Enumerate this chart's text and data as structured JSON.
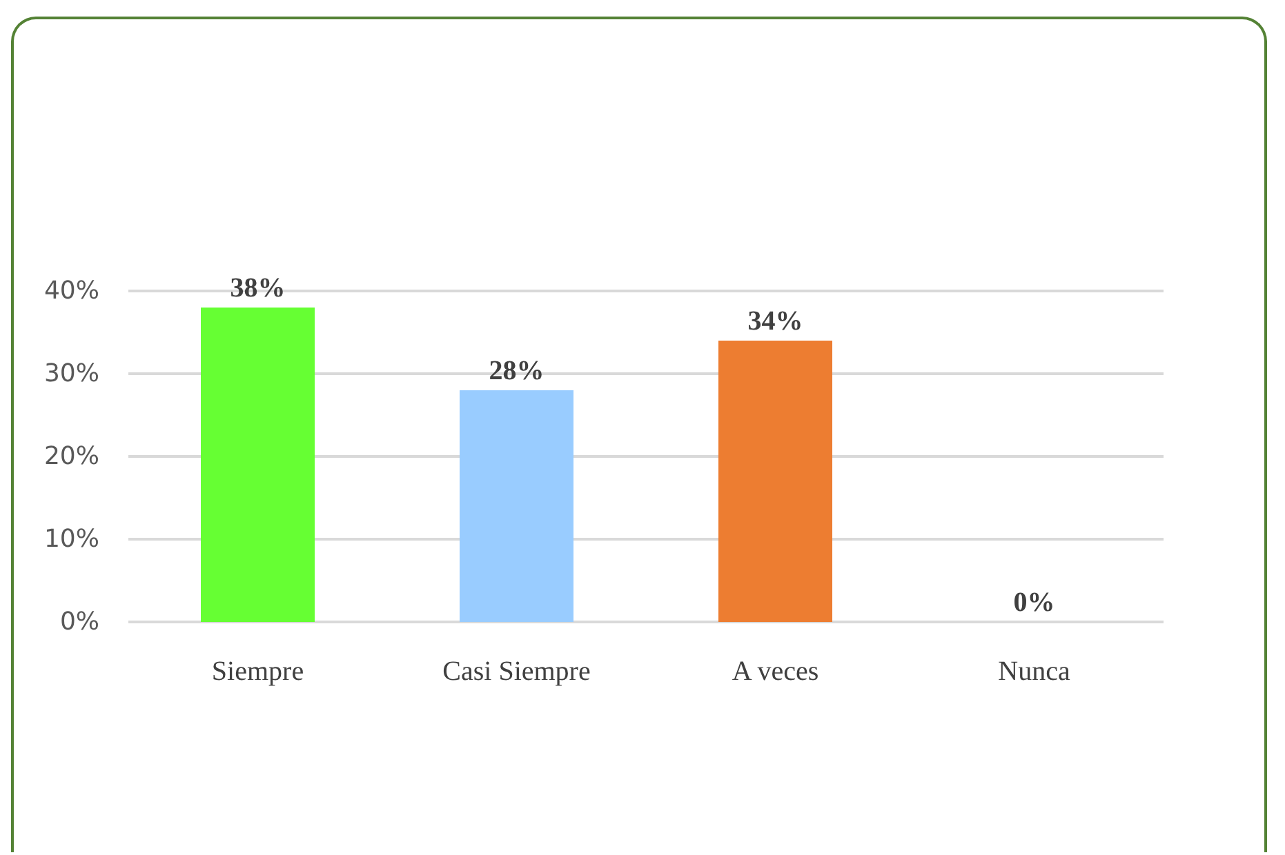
{
  "chart_data": {
    "type": "bar",
    "categories": [
      "Siempre",
      "Casi Siempre",
      "A veces",
      "Nunca"
    ],
    "values": [
      38,
      28,
      34,
      0
    ],
    "colors": [
      "#66ff33",
      "#99ccff",
      "#ed7d31",
      "#c4c400"
    ],
    "value_labels": [
      "38%",
      "28%",
      "34%",
      "0%"
    ],
    "ylim": [
      0,
      40
    ],
    "yticks": [
      {
        "value": 0,
        "label": "0%"
      },
      {
        "value": 10,
        "label": "10%"
      },
      {
        "value": 20,
        "label": "20%"
      },
      {
        "value": 30,
        "label": "30%"
      },
      {
        "value": 40,
        "label": "40%"
      }
    ],
    "grid": "y"
  }
}
